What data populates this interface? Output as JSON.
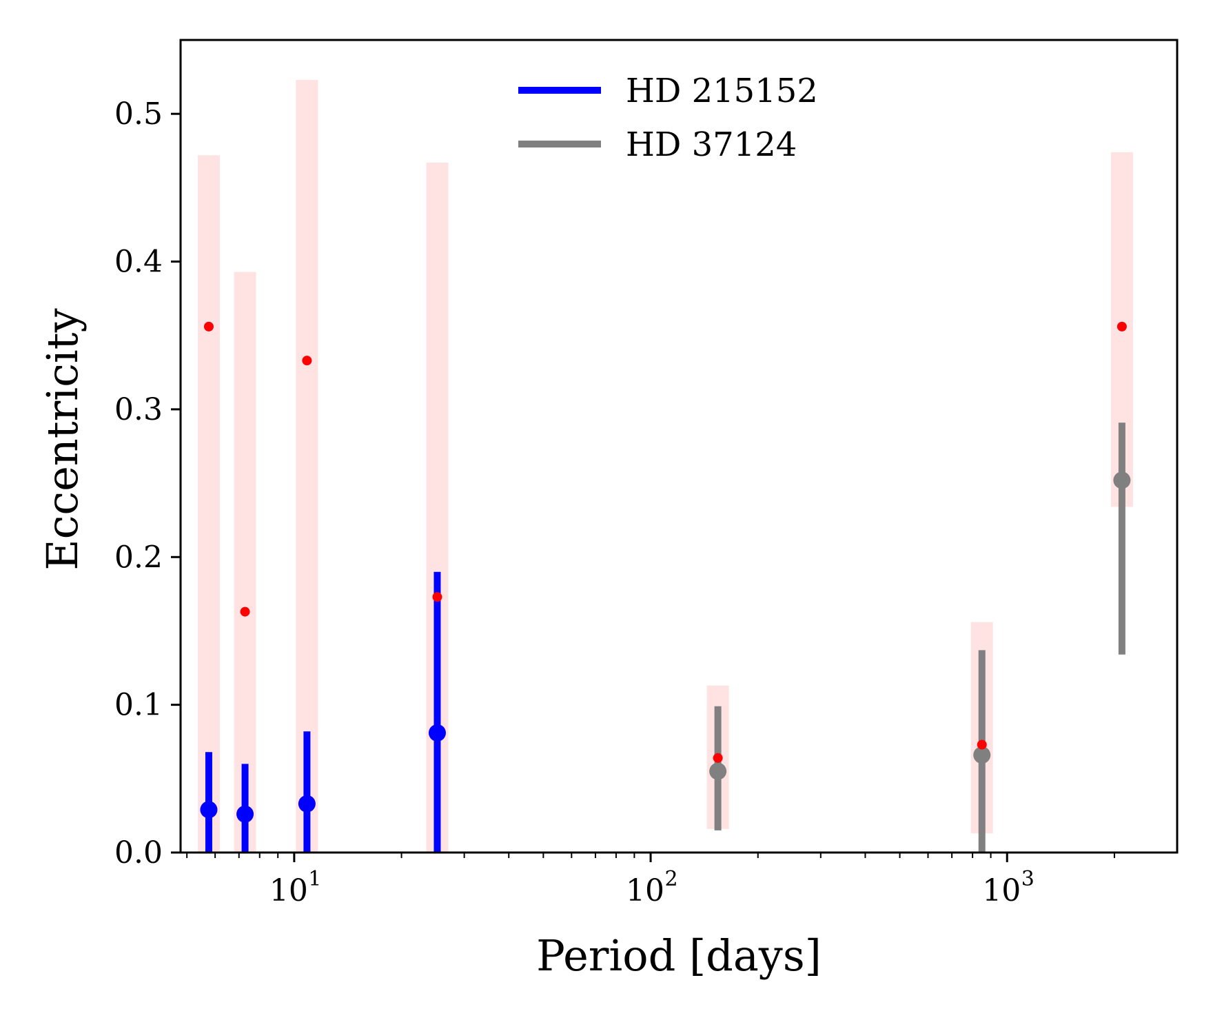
{
  "chart_data": {
    "type": "scatter",
    "title": "",
    "xlabel": "Period [days]",
    "ylabel": "Eccentricity",
    "xscale": "log",
    "xlim": [
      4.8,
      3000
    ],
    "ylim": [
      0,
      0.55
    ],
    "grid": false,
    "legend_position": "top-center",
    "colors": {
      "HD 215152": "#0000ff",
      "HD 37124": "#808080",
      "prior_point": "#ff0000",
      "prior_band": "#ffe2e2",
      "axes": "#000000"
    },
    "y_ticks": [
      {
        "value": 0.0,
        "label": "0.0"
      },
      {
        "value": 0.1,
        "label": "0.1"
      },
      {
        "value": 0.2,
        "label": "0.2"
      },
      {
        "value": 0.3,
        "label": "0.3"
      },
      {
        "value": 0.4,
        "label": "0.4"
      },
      {
        "value": 0.5,
        "label": "0.5"
      }
    ],
    "x_ticks": [
      {
        "value": 10,
        "base": "10",
        "exp": "1"
      },
      {
        "value": 100,
        "base": "10",
        "exp": "2"
      },
      {
        "value": 1000,
        "base": "10",
        "exp": "3"
      }
    ],
    "x_minor_ticks": [
      5,
      6,
      7,
      8,
      9,
      20,
      30,
      40,
      50,
      60,
      70,
      80,
      90,
      200,
      300,
      400,
      500,
      600,
      700,
      800,
      900,
      2000
    ],
    "series": [
      {
        "name": "HD 215152",
        "color": "#0000ff",
        "points": [
          {
            "period": 5.76,
            "e": 0.029,
            "e_low": 0.0,
            "e_high": 0.068
          },
          {
            "period": 7.28,
            "e": 0.026,
            "e_low": 0.0,
            "e_high": 0.06
          },
          {
            "period": 10.86,
            "e": 0.033,
            "e_low": 0.0,
            "e_high": 0.082
          },
          {
            "period": 25.2,
            "e": 0.081,
            "e_low": 0.0,
            "e_high": 0.19
          }
        ]
      },
      {
        "name": "HD 37124",
        "color": "#808080",
        "points": [
          {
            "period": 154.4,
            "e": 0.055,
            "e_low": 0.015,
            "e_high": 0.099
          },
          {
            "period": 850,
            "e": 0.066,
            "e_low": 0.0,
            "e_high": 0.137
          },
          {
            "period": 2100,
            "e": 0.252,
            "e_low": 0.134,
            "e_high": 0.291
          }
        ]
      }
    ],
    "prior": {
      "color": "#ff0000",
      "band_color": "#ffe2e2",
      "points": [
        {
          "period": 5.76,
          "e": 0.356,
          "band_low": 0.0,
          "band_high": 0.472
        },
        {
          "period": 7.28,
          "e": 0.163,
          "band_low": 0.0,
          "band_high": 0.393
        },
        {
          "period": 10.86,
          "e": 0.333,
          "band_low": 0.0,
          "band_high": 0.523
        },
        {
          "period": 25.2,
          "e": 0.173,
          "band_low": 0.0,
          "band_high": 0.467
        },
        {
          "period": 154.4,
          "e": 0.064,
          "band_low": 0.016,
          "band_high": 0.113
        },
        {
          "period": 850,
          "e": 0.073,
          "band_low": 0.013,
          "band_high": 0.156
        },
        {
          "period": 2100,
          "e": 0.356,
          "band_low": 0.234,
          "band_high": 0.474
        }
      ]
    },
    "legend": [
      {
        "label": "HD 215152",
        "color": "#0000ff"
      },
      {
        "label": "HD 37124",
        "color": "#808080"
      }
    ]
  }
}
